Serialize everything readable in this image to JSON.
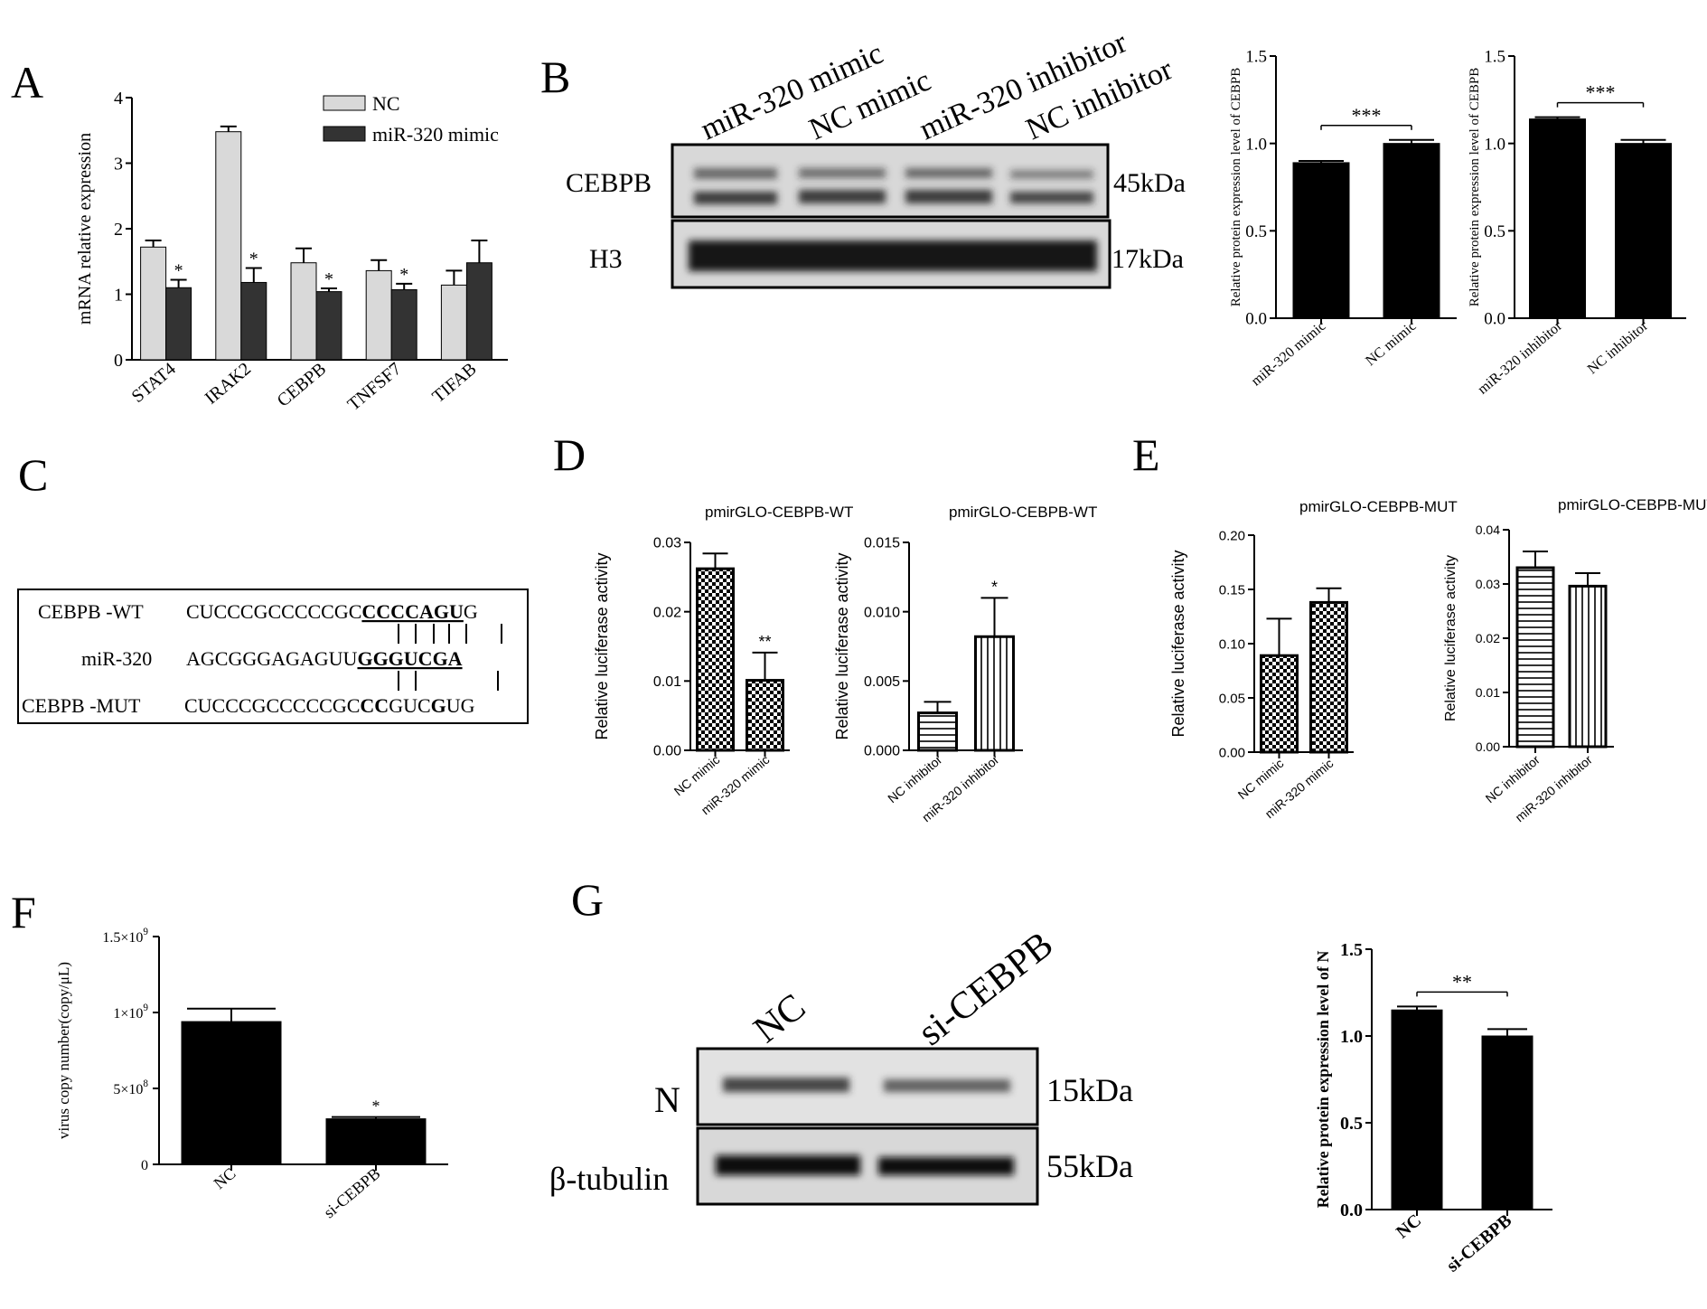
{
  "panel_letters": [
    "A",
    "B",
    "C",
    "D",
    "E",
    "F",
    "G"
  ],
  "colors": {
    "nc_grey": "#d9d9d9",
    "mimic_dark": "#333333",
    "black": "#000000",
    "blot_bg": "#cfcfcf",
    "band": "#222222"
  },
  "blot_b": {
    "lanes": [
      "miR-320 mimic",
      "NC mimic",
      "miR-320 inhibitor",
      "NC inhibitor"
    ],
    "rows": [
      {
        "name": "CEBPB",
        "size": "45kDa"
      },
      {
        "name": "H3",
        "size": "17kDa"
      }
    ]
  },
  "blot_g": {
    "lanes": [
      "NC",
      "si-CEBPB"
    ],
    "rows": [
      {
        "name": "N",
        "size": "15kDa"
      },
      {
        "name": "β-tubulin",
        "size": "55kDa"
      }
    ]
  },
  "sequence_c": {
    "rows": [
      {
        "label": "CEBPB -WT",
        "plain": "CUCCCGCCCCCGC",
        "bold": "CCCCAGU",
        "tail": "G"
      },
      {
        "label": "miR-320",
        "plain": "AGCGGGAGAGUU",
        "bold": "GGGUCGA",
        "tail": ""
      },
      {
        "label": "CEBPB -MUT",
        "plain": "CUCCCGCCCCCGC",
        "bold": "CC",
        "mid": "GUC",
        "bold2": "G",
        "tail2": "UG"
      }
    ]
  },
  "chart_data": [
    {
      "id": "A",
      "type": "bar",
      "categories": [
        "STAT4",
        "IRAK2",
        "CEBPB",
        "TNFSF7",
        "TIFAB"
      ],
      "series": [
        {
          "name": "NC",
          "values": [
            1.72,
            3.48,
            1.48,
            1.36,
            1.14
          ],
          "errors": [
            0.1,
            0.08,
            0.22,
            0.16,
            0.22
          ]
        },
        {
          "name": "miR-320 mimic",
          "values": [
            1.1,
            1.18,
            1.04,
            1.07,
            1.48
          ],
          "errors": [
            0.12,
            0.22,
            0.05,
            0.09,
            0.34
          ]
        }
      ],
      "significance": [
        "*",
        "*",
        "*",
        "*",
        ""
      ],
      "xlabel": "",
      "ylabel": "mRNA relative expression",
      "ylim": [
        0,
        4
      ],
      "yticks": [
        "0",
        "1",
        "2",
        "3",
        "4"
      ]
    },
    {
      "id": "B1",
      "type": "bar",
      "categories": [
        "miR-320 mimic",
        "NC mimic"
      ],
      "values": [
        0.89,
        1.0
      ],
      "errors": [
        0.01,
        0.02
      ],
      "significance": "***",
      "xlabel": "",
      "ylabel": "Relative protein expression level of CEBPB",
      "ylim": [
        0,
        1.5
      ],
      "yticks": [
        "0.0",
        "0.5",
        "1.0",
        "1.5"
      ]
    },
    {
      "id": "B2",
      "type": "bar",
      "categories": [
        "miR-320 inhibitor",
        "NC inhibitor"
      ],
      "values": [
        1.14,
        1.0
      ],
      "errors": [
        0.01,
        0.02
      ],
      "significance": "***",
      "xlabel": "",
      "ylabel": "Relative protein expression level of CEBPB",
      "ylim": [
        0,
        1.5
      ],
      "yticks": [
        "0.0",
        "0.5",
        "1.0",
        "1.5"
      ]
    },
    {
      "id": "D1",
      "type": "bar",
      "title": "pmirGLO-CEBPB-WT",
      "categories": [
        "NC mimic",
        "miR-320 mimic"
      ],
      "values": [
        0.0262,
        0.0101
      ],
      "errors": [
        0.0022,
        0.004
      ],
      "significance": [
        "",
        "**"
      ],
      "patterns": [
        "checker",
        "checker"
      ],
      "xlabel": "",
      "ylabel": "Relative luciferase activity",
      "ylim": [
        0,
        0.03
      ],
      "yticks": [
        "0.00",
        "0.01",
        "0.02",
        "0.03"
      ]
    },
    {
      "id": "D2",
      "type": "bar",
      "title": "pmirGLO-CEBPB-WT",
      "categories": [
        "NC inhibitor",
        "miR-320 inhibitor"
      ],
      "values": [
        0.0027,
        0.0082
      ],
      "errors": [
        0.0008,
        0.0028
      ],
      "significance": [
        "",
        "*"
      ],
      "patterns": [
        "hlines",
        "vlines"
      ],
      "xlabel": "",
      "ylabel": "Relative luciferase activity",
      "ylim": [
        0,
        0.015
      ],
      "yticks": [
        "0.000",
        "0.005",
        "0.010",
        "0.015"
      ]
    },
    {
      "id": "E1",
      "type": "bar",
      "title": "pmirGLO-CEBPB-MUT",
      "categories": [
        "NC mimic",
        "miR-320 mimic"
      ],
      "values": [
        0.089,
        0.138
      ],
      "errors": [
        0.034,
        0.013
      ],
      "significance": [
        "",
        ""
      ],
      "patterns": [
        "checker",
        "checker"
      ],
      "xlabel": "",
      "ylabel": "Relative luciferase activity",
      "ylim": [
        0,
        0.2
      ],
      "yticks": [
        "0.00",
        "0.05",
        "0.10",
        "0.15",
        "0.20"
      ]
    },
    {
      "id": "E2",
      "type": "bar",
      "title": "pmirGLO-CEBPB-MUT",
      "categories": [
        "NC inhibitor",
        "miR-320 inhibitor"
      ],
      "values": [
        0.033,
        0.0296
      ],
      "errors": [
        0.003,
        0.0024
      ],
      "significance": [
        "",
        ""
      ],
      "patterns": [
        "hlines",
        "vlines"
      ],
      "xlabel": "",
      "ylabel": "Relative luciferase activity",
      "ylim": [
        0,
        0.04
      ],
      "yticks": [
        "0.00",
        "0.01",
        "0.02",
        "0.03",
        "0.04"
      ]
    },
    {
      "id": "F",
      "type": "bar",
      "categories": [
        "NC",
        "si-CEBPB"
      ],
      "values": [
        940000000,
        300000000
      ],
      "errors": [
        85000000,
        12000000
      ],
      "significance": [
        "",
        "*"
      ],
      "xlabel": "",
      "ylabel": "virus copy number(copy/μL)",
      "ylim": [
        0,
        1500000000
      ],
      "yticks": [
        {
          "base": "0",
          "exp": ""
        },
        {
          "base": "5×10",
          "exp": "8"
        },
        {
          "base": "1×10",
          "exp": "9"
        },
        {
          "base": "1.5×10",
          "exp": "9"
        }
      ]
    },
    {
      "id": "G",
      "type": "bar",
      "categories": [
        "NC",
        "si-CEBPB"
      ],
      "values": [
        1.15,
        1.0
      ],
      "errors": [
        0.02,
        0.04
      ],
      "significance": "**",
      "xlabel": "",
      "ylabel": "Relative protein expression level of N",
      "ylim": [
        0,
        1.5
      ],
      "yticks": [
        "0.0",
        "0.5",
        "1.0",
        "1.5"
      ]
    }
  ]
}
